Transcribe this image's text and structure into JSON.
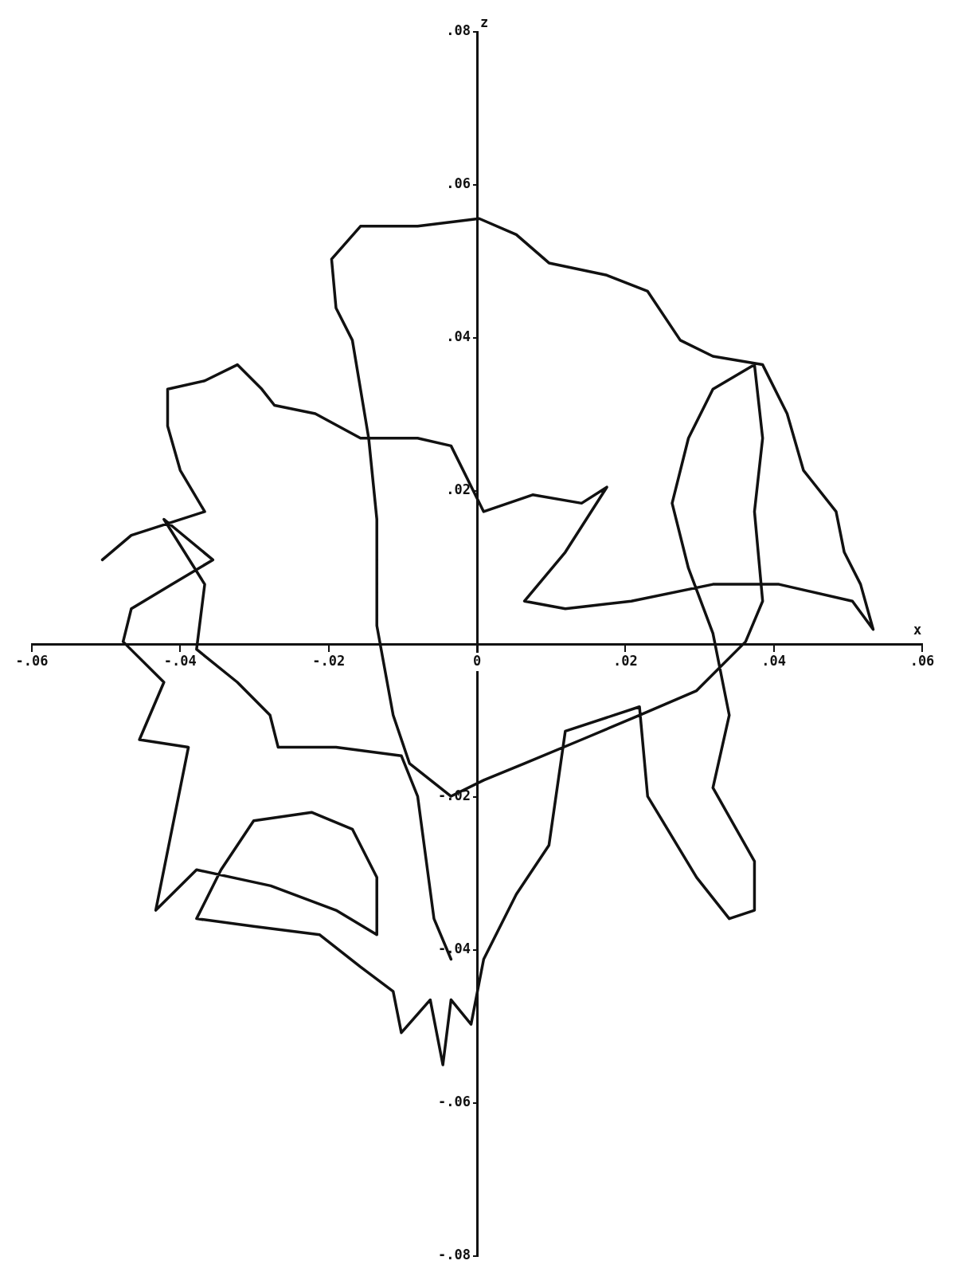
{
  "chart_data": {
    "type": "line",
    "xlabel": "x",
    "ylabel": "z",
    "grid": false,
    "legend": false,
    "marker": "none",
    "line_style": "solid",
    "xlim": [
      -0.06,
      0.06
    ],
    "ylim": [
      -0.08,
      0.08
    ],
    "xticks": [
      {
        "value": -0.06,
        "label": "-.06"
      },
      {
        "value": -0.04,
        "label": "-.04"
      },
      {
        "value": -0.02,
        "label": "-.02"
      },
      {
        "value": 0,
        "label": "0"
      },
      {
        "value": 0.02,
        "label": ".02"
      },
      {
        "value": 0.04,
        "label": ".04"
      },
      {
        "value": 0.06,
        "label": ".06"
      }
    ],
    "yticks": [
      {
        "value": -0.08,
        "label": "-.08"
      },
      {
        "value": -0.06,
        "label": "-.06"
      },
      {
        "value": -0.04,
        "label": "-.04"
      },
      {
        "value": -0.02,
        "label": "-.02"
      },
      {
        "value": 0.02,
        "label": ".02"
      },
      {
        "value": 0.04,
        "label": ".04"
      },
      {
        "value": 0.06,
        "label": ".06"
      },
      {
        "value": 0.08,
        "label": ".08"
      }
    ],
    "series": [
      {
        "color": "#111111",
        "x": [
          -0.0505,
          -0.0466,
          -0.0367,
          -0.04,
          -0.0417,
          -0.0417,
          -0.0367,
          -0.0323,
          -0.029,
          -0.0273,
          -0.0218,
          -0.0157,
          -0.008,
          -0.0035,
          0.0009,
          0.0075,
          0.0141,
          0.0175,
          0.0119,
          0.0064,
          0.0119,
          0.0208,
          0.0318,
          0.0407,
          0.0506,
          0.0534,
          0.0517,
          0.0495,
          0.0484,
          0.044,
          0.0418,
          0.0385,
          0.0318,
          0.0274,
          0.023,
          0.0175,
          0.0097,
          0.0053,
          0.0003,
          -0.008,
          -0.0157,
          -0.0196,
          -0.019,
          -0.0168,
          -0.0146,
          -0.0135,
          -0.0135,
          -0.0113,
          -0.0091,
          -0.0035,
          0.0009,
          0.0064,
          0.0141,
          0.0219,
          0.0296,
          0.0362,
          0.0385,
          0.0374,
          0.0385,
          0.0374,
          0.0318,
          0.0285,
          0.0263,
          0.0285,
          0.0318,
          0.034,
          0.0318,
          0.0374,
          0.0374,
          0.034,
          0.0296,
          0.023,
          0.0219,
          0.0119,
          0.0097,
          0.0053,
          0.0009,
          -0.0008,
          -0.0035,
          -0.0046,
          -0.0063,
          -0.0102,
          -0.0113,
          -0.0157,
          -0.0212,
          -0.0301,
          -0.0378,
          -0.0345,
          -0.0301,
          -0.0223,
          -0.0168,
          -0.0135,
          -0.0135,
          -0.019,
          -0.0278,
          -0.0378,
          -0.0433,
          -0.0389,
          -0.0455,
          -0.0422,
          -0.0477,
          -0.0466,
          -0.0411,
          -0.0356,
          -0.0422,
          -0.0367,
          -0.0378,
          -0.0323,
          -0.0279,
          -0.0268,
          -0.019,
          -0.0102,
          -0.008,
          -0.0058,
          -0.0035
        ],
        "values": [
          0.011,
          0.0142,
          0.0173,
          0.0227,
          0.0285,
          0.0333,
          0.0344,
          0.0365,
          0.0333,
          0.0312,
          0.0301,
          0.0269,
          0.0269,
          0.0259,
          0.0173,
          0.0195,
          0.0184,
          0.0205,
          0.012,
          0.0056,
          0.0046,
          0.0056,
          0.0078,
          0.0078,
          0.0056,
          0.0019,
          0.0078,
          0.012,
          0.0173,
          0.0227,
          0.0301,
          0.0365,
          0.0376,
          0.0397,
          0.0461,
          0.0482,
          0.0498,
          0.0535,
          0.0556,
          0.0546,
          0.0546,
          0.0503,
          0.0439,
          0.0397,
          0.0269,
          0.0163,
          0.0024,
          -0.0093,
          -0.0156,
          -0.0199,
          -0.0178,
          -0.0156,
          -0.0125,
          -0.0093,
          -0.0061,
          0.0003,
          0.0056,
          0.0173,
          0.0269,
          0.0365,
          0.0333,
          0.0269,
          0.0184,
          0.0099,
          0.0014,
          -0.0093,
          -0.0188,
          -0.0284,
          -0.0348,
          -0.0359,
          -0.0305,
          -0.0199,
          -0.0082,
          -0.0114,
          -0.0263,
          -0.0327,
          -0.0412,
          -0.0497,
          -0.0465,
          -0.055,
          -0.0465,
          -0.0508,
          -0.0454,
          -0.0422,
          -0.038,
          -0.0369,
          -0.0359,
          -0.0295,
          -0.0231,
          -0.022,
          -0.0242,
          -0.0305,
          -0.038,
          -0.0348,
          -0.0316,
          -0.0295,
          -0.0348,
          -0.0135,
          -0.0125,
          -0.005,
          0.0003,
          0.0046,
          0.0078,
          0.011,
          0.0163,
          0.0078,
          -0.0007,
          -0.005,
          -0.0093,
          -0.0135,
          -0.0135,
          -0.0146,
          -0.0199,
          -0.0359,
          -0.0412
        ]
      }
    ]
  }
}
